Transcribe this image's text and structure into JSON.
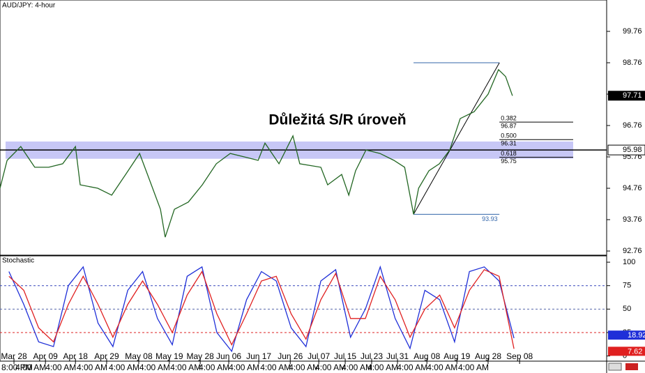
{
  "chart_data": [
    {
      "type": "line",
      "title": "AUD/JPY: 4-hour",
      "annotation": "Důležitá S/R úroveň",
      "x": [
        -0.47,
        -0.23,
        0.23,
        0.7,
        1.17,
        1.64,
        2.07,
        2.23,
        2.82,
        3.29,
        3.76,
        4.23,
        4.58,
        4.93,
        5.09,
        5.4,
        5.87,
        6.34,
        6.81,
        7.28,
        7.75,
        8.22,
        8.45,
        8.92,
        9.39,
        9.62,
        10.33,
        10.56,
        11.03,
        11.27,
        11.5,
        11.85,
        12.32,
        12.79,
        13.15,
        13.45,
        13.62,
        13.97,
        14.32,
        14.67,
        15.02,
        15.49,
        15.96,
        16.31,
        16.55,
        16.78
      ],
      "values": [
        94.76,
        95.65,
        96.09,
        95.43,
        95.43,
        95.54,
        96.09,
        94.87,
        94.76,
        94.54,
        95.2,
        95.87,
        94.98,
        94.09,
        93.2,
        94.09,
        94.32,
        94.87,
        95.54,
        95.87,
        95.76,
        95.65,
        96.2,
        95.54,
        96.43,
        95.54,
        95.43,
        94.87,
        95.2,
        94.54,
        95.32,
        95.98,
        95.87,
        95.65,
        95.43,
        93.93,
        94.76,
        95.32,
        95.54,
        95.98,
        96.98,
        97.2,
        97.76,
        98.54,
        98.32,
        97.71
      ],
      "color": "#226622",
      "xlim": [
        -0.47,
        19.95
      ],
      "xticks": [
        {
          "value": 0,
          "label": "Mar 28"
        },
        {
          "value": 1.06,
          "label": "Apr 09"
        },
        {
          "value": 2.07,
          "label": "Apr 18"
        },
        {
          "value": 3.12,
          "label": "Apr 29"
        },
        {
          "value": 4.2,
          "label": "May 08"
        },
        {
          "value": 5.23,
          "label": "May 19"
        },
        {
          "value": 6.27,
          "label": "May 28"
        },
        {
          "value": 7.23,
          "label": "Jun 06"
        },
        {
          "value": 8.24,
          "label": "Jun 17"
        },
        {
          "value": 9.3,
          "label": "Jun 26"
        },
        {
          "value": 10.26,
          "label": "Jul 07"
        },
        {
          "value": 11.15,
          "label": "Jul 15"
        },
        {
          "value": 12.04,
          "label": "Jul 23"
        },
        {
          "value": 12.91,
          "label": "Jul 31"
        },
        {
          "value": 13.9,
          "label": "Aug 08"
        },
        {
          "value": 14.91,
          "label": "Aug 19"
        },
        {
          "value": 15.96,
          "label": "Aug 28"
        },
        {
          "value": 17.02,
          "label": "Sep 08"
        }
      ],
      "xtick_times": [
        "8:00 PM",
        "4:00 AM",
        "4:00 AM",
        "4:00 AM",
        "4:00 AM",
        "4:00 AM",
        "4:00 AM",
        "4:00 AM",
        "4:00 AM",
        "4:00 AM",
        "4:00 AM",
        "4:00 AM",
        "4:00 AM",
        "4:00 AM",
        "4:00 AM",
        "4:00 AM",
        "4:00 AM"
      ],
      "ylim": [
        92.65,
        100.76
      ],
      "yticks": [
        92.76,
        93.76,
        94.76,
        95.76,
        96.76,
        97.76,
        98.76,
        99.76
      ],
      "last_price": 97.71,
      "sr_level": 95.98,
      "sr_zone": [
        95.7,
        96.25
      ],
      "fib": {
        "high": 98.76,
        "low": 93.93,
        "x": [
          13.45,
          16.34
        ],
        "levels": [
          {
            "ratio": "0.382",
            "price": 96.87
          },
          {
            "ratio": "0.500",
            "price": 96.31
          },
          {
            "ratio": "0.618",
            "price": 95.75
          }
        ]
      }
    },
    {
      "type": "line",
      "title": "Stochastic",
      "x": [
        -0.17,
        0.33,
        0.83,
        1.33,
        1.83,
        2.33,
        2.83,
        3.33,
        3.83,
        4.33,
        4.83,
        5.33,
        5.83,
        6.33,
        6.83,
        7.33,
        7.83,
        8.33,
        8.83,
        9.33,
        9.83,
        10.33,
        10.83,
        11.33,
        11.83,
        12.33,
        12.83,
        13.33,
        13.83,
        14.33,
        14.83,
        15.33,
        15.83,
        16.33,
        16.83
      ],
      "series": [
        {
          "color": "#1f2fd8",
          "values": [
            90,
            55,
            15,
            10,
            75,
            95,
            35,
            10,
            70,
            90,
            40,
            12,
            85,
            95,
            25,
            5,
            60,
            90,
            80,
            30,
            10,
            80,
            92,
            20,
            50,
            95,
            40,
            8,
            70,
            60,
            15,
            90,
            95,
            80,
            18.92
          ]
        },
        {
          "color": "#e02020",
          "values": [
            85,
            70,
            30,
            15,
            55,
            85,
            55,
            20,
            55,
            80,
            55,
            25,
            65,
            90,
            45,
            12,
            45,
            80,
            85,
            45,
            18,
            60,
            88,
            40,
            40,
            85,
            60,
            20,
            50,
            65,
            30,
            70,
            92,
            85,
            7.62
          ]
        }
      ],
      "ylim": [
        -5.5,
        106
      ],
      "yticks": [
        0,
        25,
        50,
        75,
        100
      ],
      "levels": [
        {
          "value": 75,
          "color": "#3344bb"
        },
        {
          "value": 50,
          "color": "#5566aa"
        },
        {
          "value": 25,
          "color": "#dd2222"
        }
      ]
    }
  ]
}
